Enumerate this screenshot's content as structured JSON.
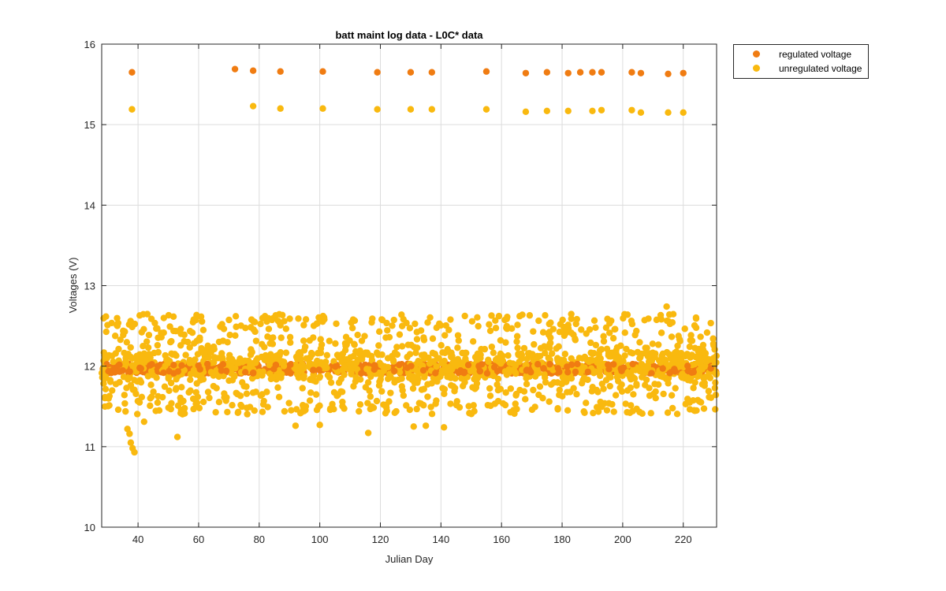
{
  "chart_data": {
    "type": "scatter",
    "title": "batt maint log data - L0C* data",
    "xlabel": "Julian Day",
    "ylabel": "Voltages (V)",
    "xlim": [
      28,
      231
    ],
    "ylim": [
      10,
      16
    ],
    "xticks": [
      40,
      60,
      80,
      100,
      120,
      140,
      160,
      180,
      200,
      220
    ],
    "yticks": [
      10,
      11,
      12,
      13,
      14,
      15,
      16
    ],
    "grid": true,
    "legend_position": "outside top-right",
    "series": [
      {
        "name": "regulated voltage",
        "color": "#f07c12",
        "points_high": [
          [
            38,
            15.65
          ],
          [
            72,
            15.69
          ],
          [
            78,
            15.67
          ],
          [
            87,
            15.66
          ],
          [
            101,
            15.66
          ],
          [
            119,
            15.65
          ],
          [
            130,
            15.65
          ],
          [
            137,
            15.65
          ],
          [
            155,
            15.66
          ],
          [
            168,
            15.64
          ],
          [
            175,
            15.65
          ],
          [
            182,
            15.64
          ],
          [
            186,
            15.65
          ],
          [
            190,
            15.65
          ],
          [
            193,
            15.65
          ],
          [
            203,
            15.65
          ],
          [
            206,
            15.64
          ],
          [
            215,
            15.63
          ],
          [
            220,
            15.64
          ]
        ],
        "band": {
          "x_range": [
            28,
            231
          ],
          "center": 11.97,
          "spread": 0.06
        }
      },
      {
        "name": "unregulated voltage",
        "color": "#f9b90f",
        "points_high": [
          [
            38,
            15.19
          ],
          [
            78,
            15.23
          ],
          [
            87,
            15.2
          ],
          [
            101,
            15.2
          ],
          [
            119,
            15.19
          ],
          [
            130,
            15.19
          ],
          [
            137,
            15.19
          ],
          [
            155,
            15.19
          ],
          [
            168,
            15.16
          ],
          [
            175,
            15.17
          ],
          [
            182,
            15.17
          ],
          [
            190,
            15.17
          ],
          [
            193,
            15.18
          ],
          [
            203,
            15.18
          ],
          [
            206,
            15.15
          ],
          [
            215,
            15.15
          ],
          [
            220,
            15.15
          ]
        ],
        "band": {
          "x_range": [
            28,
            231
          ],
          "center": 12.0,
          "min": 11.4,
          "max": 12.65
        },
        "outliers": [
          [
            36.5,
            11.22
          ],
          [
            37.2,
            11.16
          ],
          [
            37.6,
            11.05
          ],
          [
            38.2,
            10.98
          ],
          [
            38.8,
            10.93
          ],
          [
            53,
            11.12
          ],
          [
            92,
            11.26
          ],
          [
            100,
            11.27
          ],
          [
            116,
            11.17
          ],
          [
            131,
            11.25
          ],
          [
            135,
            11.26
          ],
          [
            141,
            11.24
          ],
          [
            151,
            11.44
          ],
          [
            42,
            11.31
          ],
          [
            40.5,
            11.55
          ],
          [
            47,
            11.45
          ],
          [
            28.5,
            11.98
          ],
          [
            214.5,
            12.74
          ]
        ]
      }
    ]
  }
}
